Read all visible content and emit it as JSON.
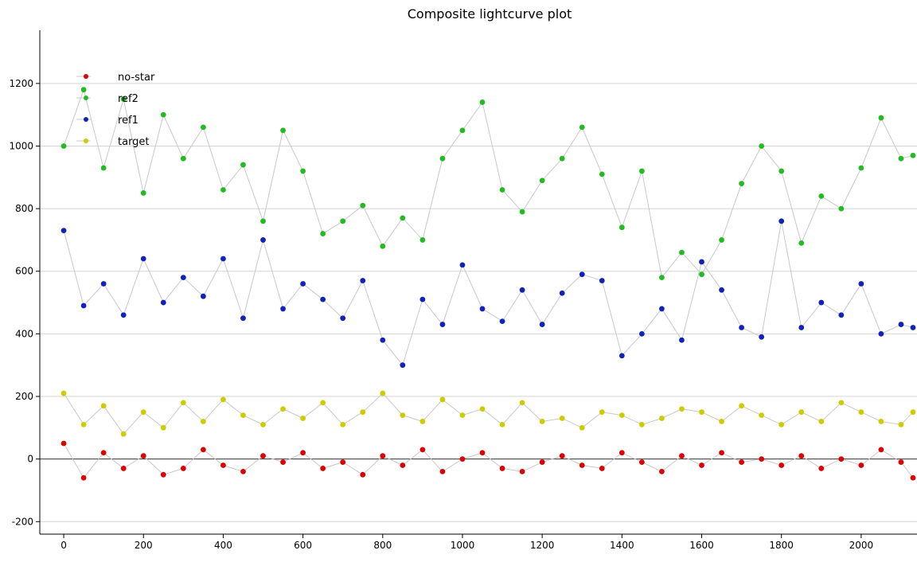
{
  "chart_data": {
    "type": "scatter",
    "title": "Composite lightcurve plot",
    "xlabel": "",
    "ylabel": "",
    "xlim": [
      -60,
      2140
    ],
    "ylim": [
      -240,
      1370
    ],
    "x_ticks": [
      0,
      200,
      400,
      600,
      800,
      1000,
      1200,
      1400,
      1600,
      1800,
      2000
    ],
    "y_ticks": [
      -200,
      0,
      200,
      400,
      600,
      800,
      1000,
      1200
    ],
    "grid": "horizontal",
    "legend_position": "top-left",
    "x": [
      0,
      50,
      100,
      150,
      200,
      250,
      300,
      350,
      400,
      450,
      500,
      550,
      600,
      650,
      700,
      750,
      800,
      850,
      900,
      950,
      1000,
      1050,
      1100,
      1150,
      1200,
      1250,
      1300,
      1350,
      1400,
      1450,
      1500,
      1550,
      1600,
      1650,
      1700,
      1750,
      1800,
      1850,
      1900,
      1950,
      2000,
      2050,
      2100,
      2130
    ],
    "series": [
      {
        "name": "no-star",
        "color": "#dd0000",
        "values": [
          50,
          -60,
          20,
          -30,
          10,
          -50,
          -30,
          30,
          -20,
          -40,
          10,
          -10,
          20,
          -30,
          -10,
          -50,
          10,
          -20,
          30,
          -40,
          0,
          20,
          -30,
          -40,
          -10,
          10,
          -20,
          -30,
          20,
          -10,
          -40,
          10,
          -20,
          20,
          -10,
          0,
          -20,
          10,
          -30,
          0,
          -20,
          30,
          -10,
          -60
        ]
      },
      {
        "name": "ref2",
        "color": "#22bb22",
        "values": [
          1000,
          1180,
          930,
          1150,
          850,
          1100,
          960,
          1060,
          860,
          940,
          760,
          1050,
          920,
          720,
          760,
          810,
          680,
          770,
          700,
          960,
          1050,
          1140,
          860,
          790,
          890,
          960,
          1060,
          910,
          740,
          920,
          580,
          660,
          590,
          700,
          880,
          1000,
          920,
          690,
          840,
          800,
          930,
          1090,
          960,
          970
        ]
      },
      {
        "name": "ref1",
        "color": "#1122bb",
        "values": [
          730,
          490,
          560,
          460,
          640,
          500,
          580,
          520,
          640,
          450,
          700,
          480,
          560,
          510,
          450,
          570,
          380,
          300,
          510,
          430,
          620,
          480,
          440,
          540,
          430,
          530,
          590,
          570,
          330,
          400,
          480,
          380,
          630,
          540,
          420,
          390,
          760,
          420,
          500,
          460,
          560,
          400,
          430,
          420
        ]
      },
      {
        "name": "target",
        "color": "#cccc00",
        "values": [
          210,
          110,
          170,
          80,
          150,
          100,
          180,
          120,
          190,
          140,
          110,
          160,
          130,
          180,
          110,
          150,
          210,
          140,
          120,
          190,
          140,
          160,
          110,
          180,
          120,
          130,
          100,
          150,
          140,
          110,
          130,
          160,
          150,
          120,
          170,
          140,
          110,
          150,
          120,
          180,
          150,
          120,
          110,
          150
        ]
      }
    ]
  }
}
